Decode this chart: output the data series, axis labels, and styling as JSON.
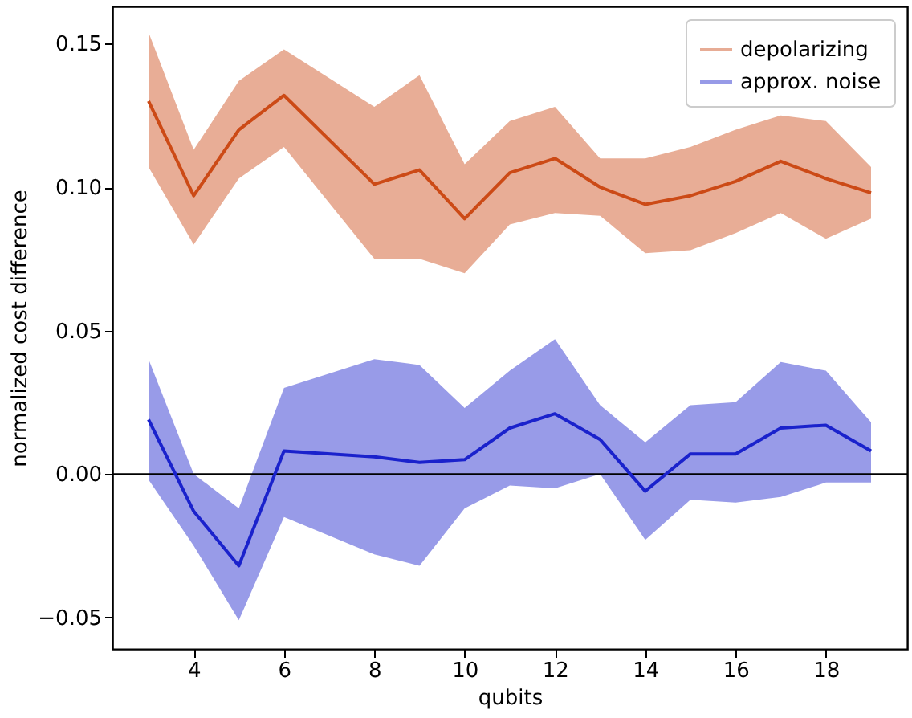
{
  "chart_data": {
    "type": "line",
    "xlabel": "qubits",
    "ylabel": "normalized cost difference",
    "x": [
      3,
      4,
      5,
      6,
      8,
      9,
      10,
      11,
      12,
      13,
      14,
      15,
      16,
      17,
      18,
      19
    ],
    "series": [
      {
        "name": "depolarizing",
        "color": "#cc4a16",
        "values": [
          0.13,
          0.097,
          0.12,
          0.132,
          0.101,
          0.106,
          0.089,
          0.105,
          0.11,
          0.1,
          0.094,
          0.097,
          0.102,
          0.109,
          0.103,
          0.098
        ],
        "lower": [
          0.107,
          0.08,
          0.103,
          0.114,
          0.075,
          0.075,
          0.07,
          0.087,
          0.091,
          0.09,
          0.077,
          0.078,
          0.084,
          0.091,
          0.082,
          0.089
        ],
        "upper": [
          0.154,
          0.113,
          0.137,
          0.148,
          0.128,
          0.139,
          0.108,
          0.123,
          0.128,
          0.11,
          0.11,
          0.114,
          0.12,
          0.125,
          0.123,
          0.107
        ]
      },
      {
        "name": "approx. noise",
        "color": "#1a22cc",
        "values": [
          0.019,
          -0.013,
          -0.032,
          0.008,
          0.006,
          0.004,
          0.005,
          0.016,
          0.021,
          0.012,
          -0.006,
          0.007,
          0.007,
          0.016,
          0.017,
          0.008
        ],
        "lower": [
          -0.002,
          -0.025,
          -0.051,
          -0.015,
          -0.028,
          -0.032,
          -0.012,
          -0.004,
          -0.005,
          0.0,
          -0.023,
          -0.009,
          -0.01,
          -0.008,
          -0.003,
          -0.003
        ],
        "upper": [
          0.04,
          0.0,
          -0.012,
          0.03,
          0.04,
          0.038,
          0.023,
          0.036,
          0.047,
          0.024,
          0.011,
          0.024,
          0.025,
          0.039,
          0.036,
          0.018
        ]
      }
    ],
    "xlim": [
      2.2,
      19.8
    ],
    "xticks": [
      4,
      6,
      8,
      10,
      12,
      14,
      16,
      18
    ],
    "ylim": [
      -0.061,
      0.163
    ],
    "yticks": [
      {
        "value": -0.05,
        "label": "−0.05"
      },
      {
        "value": 0,
        "label": "0.00"
      },
      {
        "value": 0.05,
        "label": "0.05"
      },
      {
        "value": 0.1,
        "label": "0.10"
      },
      {
        "value": 0.15,
        "label": "0.15"
      }
    ],
    "ref_lines": [
      {
        "axis": "y",
        "value": 0,
        "color": "#000000"
      }
    ],
    "legend": "top right",
    "grid": false
  }
}
